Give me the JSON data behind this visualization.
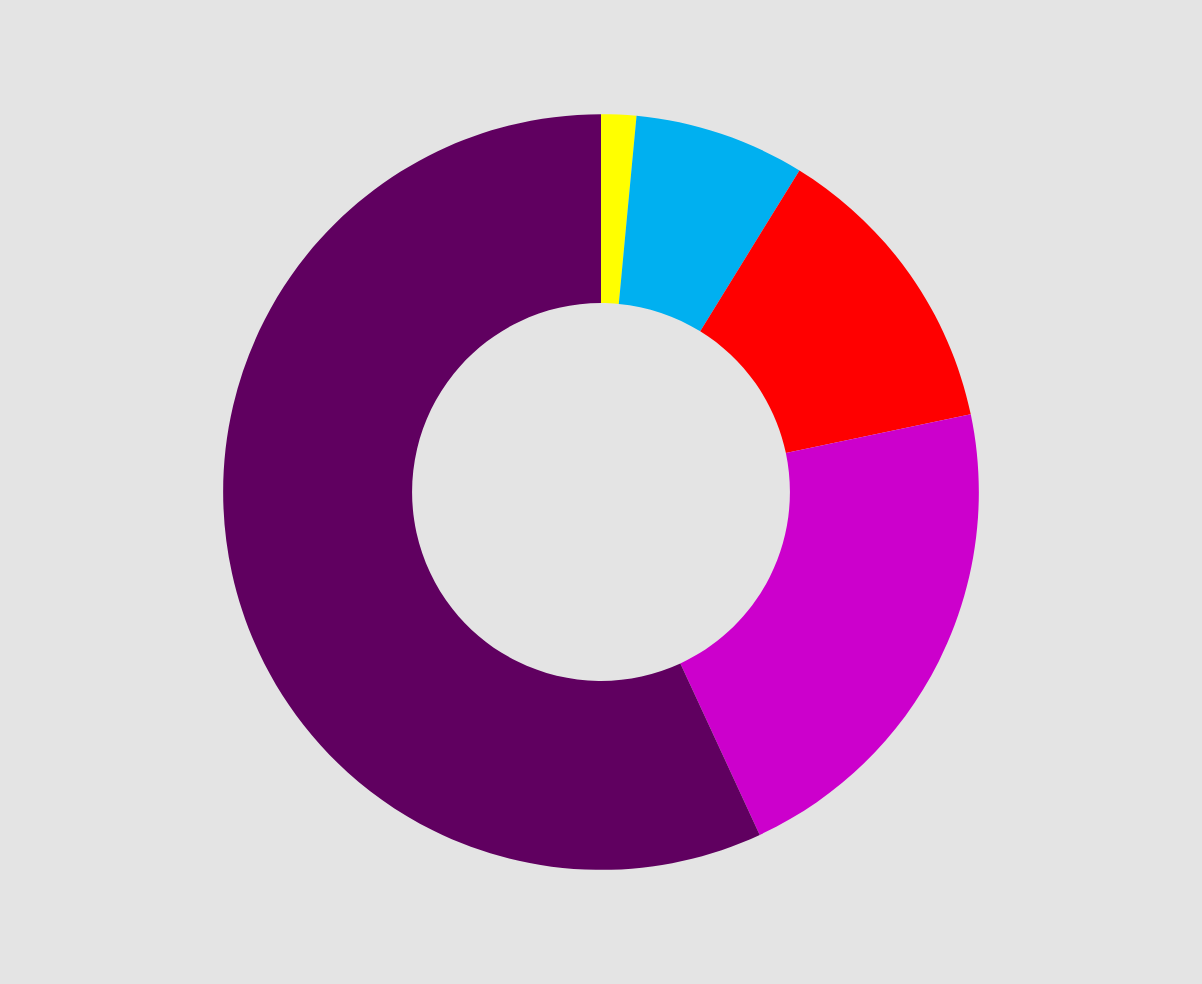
{
  "chart_data": {
    "type": "donut",
    "categories": [
      null,
      null,
      null,
      null,
      null
    ],
    "values": [
      1.5,
      7.3,
      12.9,
      21.4,
      56.9
    ],
    "colors": [
      "#ffff00",
      "#00b0f0",
      "#ff0000",
      "#cc00cc",
      "#600060"
    ]
  }
}
